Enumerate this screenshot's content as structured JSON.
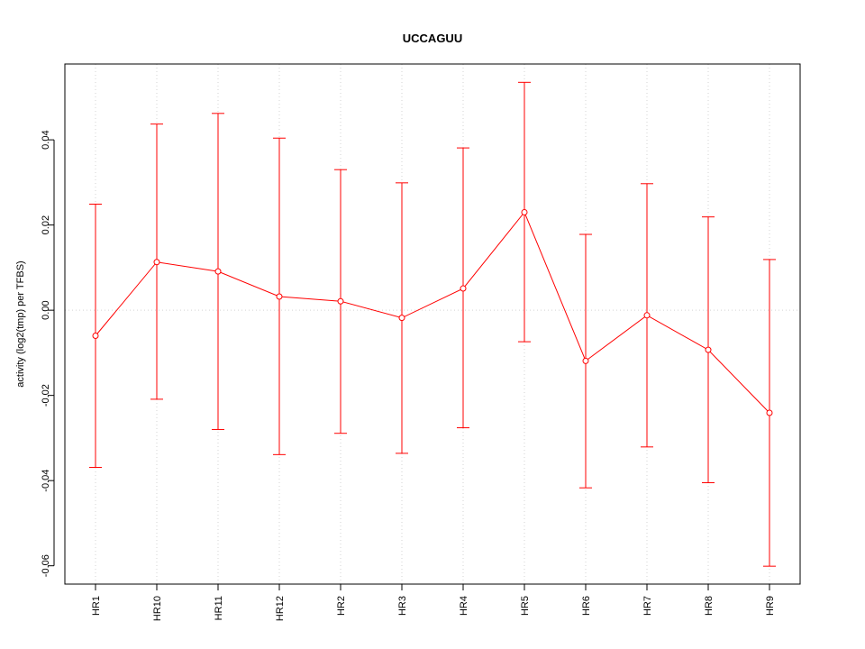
{
  "chart_data": {
    "type": "line",
    "title": "UCCAGUU",
    "xlabel": "",
    "ylabel": "activity (log2(tmp) per TFBS)",
    "categories": [
      "HR1",
      "HR10",
      "HR11",
      "HR12",
      "HR2",
      "HR3",
      "HR4",
      "HR5",
      "HR6",
      "HR7",
      "HR8",
      "HR9"
    ],
    "series": [
      {
        "values": [
          -0.006,
          0.0113,
          0.0091,
          0.0032,
          0.0021,
          -0.0018,
          0.0051,
          0.023,
          -0.0119,
          -0.0012,
          -0.0093,
          -0.0241
        ],
        "upper": [
          0.0249,
          0.0437,
          0.0462,
          0.0404,
          0.033,
          0.0299,
          0.0381,
          0.0535,
          0.0178,
          0.0297,
          0.0219,
          0.0119
        ],
        "lower": [
          -0.0369,
          -0.0209,
          -0.028,
          -0.0339,
          -0.0289,
          -0.0336,
          -0.0276,
          -0.0074,
          -0.0417,
          -0.0321,
          -0.0405,
          -0.0601
        ]
      }
    ],
    "ylim": [
      -0.0643,
      0.0578
    ],
    "yticks": [
      -0.06,
      -0.04,
      -0.02,
      0.0
    ],
    "yticks_all": [
      -0.06,
      -0.04,
      -0.02,
      0.0,
      0.02,
      0.04
    ],
    "ytick_labels": [
      "-0.06",
      "-0.04",
      "-0.02",
      "0.00",
      "0.02",
      "0.04"
    ],
    "grid": true,
    "colors": {
      "series": "#ff0000",
      "grid": "#d3d3d3",
      "axis": "#000000"
    }
  }
}
